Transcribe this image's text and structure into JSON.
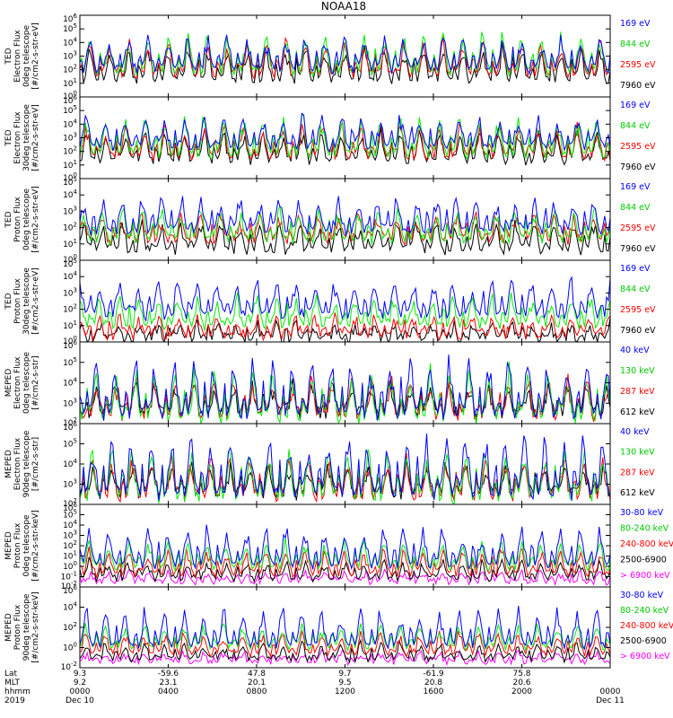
{
  "figure": {
    "title": "NOAA18"
  },
  "chart_data": [
    {
      "type": "line",
      "ylabel": [
        "TED",
        "Electron Flux",
        "0deg telescope",
        "[#/cm2-s-str-eV]"
      ],
      "yticks": [
        "10^6",
        "10^5",
        "10^4",
        "10^3",
        "10^2",
        "10^1",
        "10^0"
      ],
      "log_range": [
        0,
        6
      ],
      "series": [
        {
          "name": "7960 eV",
          "color": "#000000",
          "base": 1.2,
          "peak": 3.8
        },
        {
          "name": "2595 eV",
          "color": "#ff0000",
          "base": 1.6,
          "peak": 4.2
        },
        {
          "name": "844 eV",
          "color": "#00ee00",
          "base": 1.8,
          "peak": 4.8
        },
        {
          "name": "169 eV",
          "color": "#0000ff",
          "base": 2.0,
          "peak": 4.6
        }
      ]
    },
    {
      "type": "line",
      "ylabel": [
        "TED",
        "Electron Flux",
        "30deg telescope",
        "[#/cm2-s-str-eV]"
      ],
      "yticks": [
        "10^6",
        "10^5",
        "10^4",
        "10^3",
        "10^2",
        "10^1",
        "10^0"
      ],
      "log_range": [
        0,
        6
      ],
      "series": [
        {
          "name": "7960 eV",
          "color": "#000000",
          "base": 1.3,
          "peak": 3.6
        },
        {
          "name": "2595 eV",
          "color": "#ff0000",
          "base": 1.6,
          "peak": 4.0
        },
        {
          "name": "844 eV",
          "color": "#00ee00",
          "base": 1.7,
          "peak": 4.7
        },
        {
          "name": "169 eV",
          "color": "#0000ff",
          "base": 2.3,
          "peak": 4.8
        }
      ]
    },
    {
      "type": "line",
      "ylabel": [
        "TED",
        "Proton Flux",
        "0deg telescope",
        "[#/cm2-s-str-eV]"
      ],
      "yticks": [
        "10^5",
        "10^4",
        "10^3",
        "10^2",
        "10^1",
        "10^0"
      ],
      "log_range": [
        0,
        5
      ],
      "series": [
        {
          "name": "7960 eV",
          "color": "#000000",
          "base": 0.6,
          "peak": 2.4
        },
        {
          "name": "2595 eV",
          "color": "#ff0000",
          "base": 1.2,
          "peak": 2.9
        },
        {
          "name": "844 eV",
          "color": "#00ee00",
          "base": 1.2,
          "peak": 3.3
        },
        {
          "name": "169 eV",
          "color": "#0000ff",
          "base": 1.8,
          "peak": 3.9
        }
      ]
    },
    {
      "type": "line",
      "ylabel": [
        "TED",
        "Proton Flux",
        "30deg telescope",
        "[#/cm2-s-str-eV]"
      ],
      "yticks": [
        "10^5",
        "10^4",
        "10^3",
        "10^2",
        "10^1",
        "10^0"
      ],
      "log_range": [
        0,
        5
      ],
      "series": [
        {
          "name": "7960 eV",
          "color": "#000000",
          "base": 0.2,
          "peak": 1.2
        },
        {
          "name": "2595 eV",
          "color": "#ff0000",
          "base": 0.4,
          "peak": 1.6
        },
        {
          "name": "844 eV",
          "color": "#00ee00",
          "base": 1.0,
          "peak": 2.9
        },
        {
          "name": "169 eV",
          "color": "#0000ff",
          "base": 1.6,
          "peak": 3.9
        }
      ]
    },
    {
      "type": "line",
      "ylabel": [
        "MEPED",
        "Electron Flux",
        "0deg telescope",
        "[#/cm2-s-str]"
      ],
      "yticks": [
        "10^6",
        "10^5",
        "10^4",
        "10^3",
        "10^2"
      ],
      "log_range": [
        2,
        6
      ],
      "series": [
        {
          "name": "612 keV",
          "color": "#000000",
          "base": 2.5,
          "peak": 4.0
        },
        {
          "name": "287 keV",
          "color": "#ff0000",
          "base": 2.4,
          "peak": 4.3
        },
        {
          "name": "130 keV",
          "color": "#00ee00",
          "base": 2.3,
          "peak": 4.8
        },
        {
          "name": "40 keV",
          "color": "#0000ff",
          "base": 2.4,
          "peak": 5.3
        }
      ]
    },
    {
      "type": "line",
      "ylabel": [
        "MEPED",
        "Electron Flux",
        "90deg telescope",
        "[#/cm2-s-str]"
      ],
      "yticks": [
        "10^6",
        "10^5",
        "10^4",
        "10^3",
        "10^2"
      ],
      "log_range": [
        2,
        6
      ],
      "series": [
        {
          "name": "612 keV",
          "color": "#000000",
          "base": 2.5,
          "peak": 4.1
        },
        {
          "name": "287 keV",
          "color": "#ff0000",
          "base": 2.4,
          "peak": 4.4
        },
        {
          "name": "130 keV",
          "color": "#00ee00",
          "base": 2.3,
          "peak": 4.9
        },
        {
          "name": "40 keV",
          "color": "#0000ff",
          "base": 2.5,
          "peak": 5.5
        }
      ]
    },
    {
      "type": "line",
      "ylabel": [
        "MEPED",
        "Proton Flux",
        "0deg telescope",
        "[#/cm2-s-str-keV]"
      ],
      "yticks": [
        "10^6",
        "10^5",
        "10^4",
        "10^3",
        "10^2",
        "10^1",
        "10^0",
        "10^-1",
        "10^-2"
      ],
      "log_range": [
        -2,
        6
      ],
      "series": [
        {
          "name": "> 6900 keV",
          "color": "#ff00ff",
          "base": -1.5,
          "peak": -0.5
        },
        {
          "name": "2500-6900",
          "color": "#000000",
          "base": -1.2,
          "peak": 0.6
        },
        {
          "name": "240-800 keV",
          "color": "#ff0000",
          "base": -0.8,
          "peak": 1.8
        },
        {
          "name": "80-240 keV",
          "color": "#00ee00",
          "base": -0.2,
          "peak": 2.6
        },
        {
          "name": "30-80 keV",
          "color": "#0000ff",
          "base": 0.0,
          "peak": 4.2
        }
      ]
    },
    {
      "type": "line",
      "ylabel": [
        "MEPED",
        "Proton Flux",
        "90deg telescope",
        "[#/cm2-s-str-keV]"
      ],
      "yticks": [
        "10^6",
        "10^4",
        "10^2",
        "10^0",
        "10^-2"
      ],
      "log_range": [
        -2,
        6
      ],
      "series": [
        {
          "name": "> 6900 keV",
          "color": "#ff00ff",
          "base": -1.4,
          "peak": -0.4
        },
        {
          "name": "2500-6900",
          "color": "#000000",
          "base": -1.2,
          "peak": 0.6
        },
        {
          "name": "240-800 keV",
          "color": "#ff0000",
          "base": -0.6,
          "peak": 1.6
        },
        {
          "name": "80-240 keV",
          "color": "#00ee00",
          "base": 0.0,
          "peak": 2.4
        },
        {
          "name": "30-80 keV",
          "color": "#0000ff",
          "base": 0.1,
          "peak": 4.0
        }
      ]
    }
  ],
  "x_axis": {
    "row_labels": [
      "Lat",
      "MLT",
      "hhmm",
      "2019"
    ],
    "ticks": [
      {
        "lat": "9.3",
        "mlt": "9.2",
        "hhmm": "0000",
        "date": "Dec 10"
      },
      {
        "lat": "-59.6",
        "mlt": "23.1",
        "hhmm": "0400",
        "date": ""
      },
      {
        "lat": "47.8",
        "mlt": "20.1",
        "hhmm": "0800",
        "date": ""
      },
      {
        "lat": "9.7",
        "mlt": "9.5",
        "hhmm": "1200",
        "date": ""
      },
      {
        "lat": "-61.9",
        "mlt": "20.8",
        "hhmm": "1600",
        "date": ""
      },
      {
        "lat": "75.8",
        "mlt": "20.6",
        "hhmm": "2000",
        "date": ""
      },
      {
        "lat": "",
        "mlt": "",
        "hhmm": "0000",
        "date": "Dec 11"
      }
    ]
  }
}
